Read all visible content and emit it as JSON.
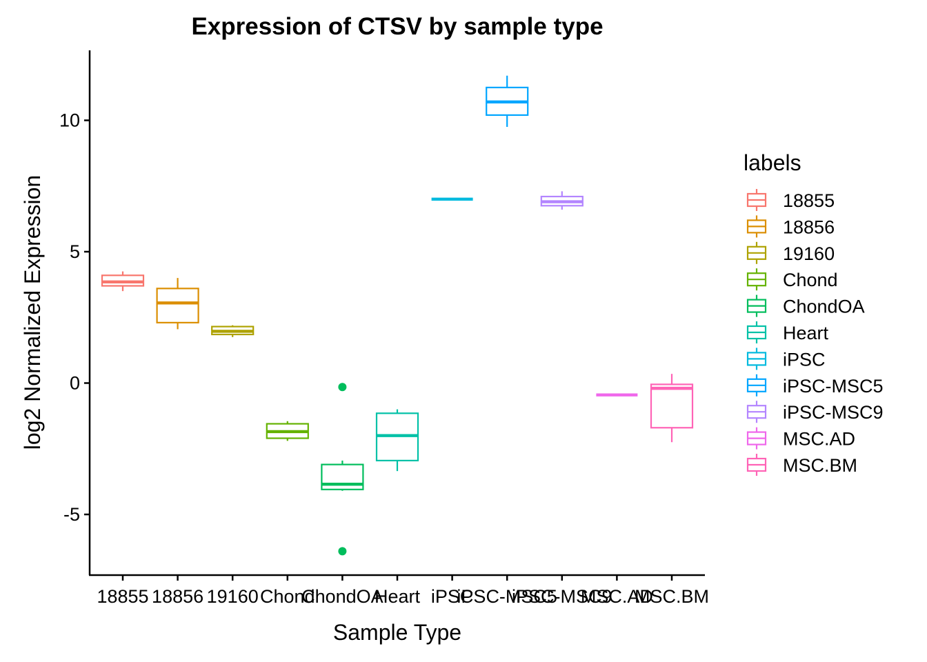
{
  "chart_data": {
    "type": "box",
    "title": "Expression of CTSV by sample type",
    "xlabel": "Sample Type",
    "ylabel": "log2 Normalized Expression",
    "ylim": [
      -7.2,
      12.9
    ],
    "yticks": [
      -5,
      0,
      5,
      10
    ],
    "ytick_labels": [
      "-5",
      "0",
      "5",
      "10"
    ],
    "grid": false,
    "legend": {
      "title": "labels",
      "placement": "right"
    },
    "categories": [
      "18855",
      "18856",
      "19160",
      "Chond",
      "ChondOA",
      "Heart",
      "iPSC",
      "iPSC-MSC5",
      "iPSC-MSC9",
      "MSC.AD",
      "MSC.BM"
    ],
    "colors": [
      "#F8766D",
      "#DB8E00",
      "#AEA200",
      "#64B200",
      "#00BD5C",
      "#00C1A7",
      "#00BADE",
      "#00A6FF",
      "#B385FF",
      "#EF67EB",
      "#FF63B6"
    ],
    "boxes": [
      {
        "label": "18855",
        "min": 3.5,
        "q1": 3.7,
        "median": 3.85,
        "q3": 4.1,
        "max": 4.25,
        "outliers": []
      },
      {
        "label": "18856",
        "min": 2.05,
        "q1": 2.3,
        "median": 3.05,
        "q3": 3.6,
        "max": 4.0,
        "outliers": []
      },
      {
        "label": "19160",
        "min": 1.75,
        "q1": 1.85,
        "median": 1.97,
        "q3": 2.15,
        "max": 2.2,
        "outliers": []
      },
      {
        "label": "Chond",
        "min": -2.2,
        "q1": -2.1,
        "median": -1.85,
        "q3": -1.55,
        "max": -1.45,
        "outliers": []
      },
      {
        "label": "ChondOA",
        "min": -4.1,
        "q1": -4.05,
        "median": -3.85,
        "q3": -3.1,
        "max": -2.95,
        "outliers": [
          -0.15,
          -6.4
        ]
      },
      {
        "label": "Heart",
        "min": -3.35,
        "q1": -2.95,
        "median": -2.0,
        "q3": -1.15,
        "max": -1.0,
        "outliers": []
      },
      {
        "label": "iPSC",
        "min": 7.0,
        "q1": 7.0,
        "median": 7.0,
        "q3": 7.0,
        "max": 7.0,
        "outliers": []
      },
      {
        "label": "iPSC-MSC5",
        "min": 9.75,
        "q1": 10.2,
        "median": 10.7,
        "q3": 11.25,
        "max": 11.7,
        "outliers": []
      },
      {
        "label": "iPSC-MSC9",
        "min": 6.6,
        "q1": 6.75,
        "median": 6.9,
        "q3": 7.1,
        "max": 7.3,
        "outliers": []
      },
      {
        "label": "MSC.AD",
        "min": -0.45,
        "q1": -0.45,
        "median": -0.45,
        "q3": -0.45,
        "max": -0.45,
        "outliers": []
      },
      {
        "label": "MSC.BM",
        "min": -2.25,
        "q1": -1.7,
        "median": -0.2,
        "q3": -0.05,
        "max": 0.35,
        "outliers": []
      }
    ]
  }
}
